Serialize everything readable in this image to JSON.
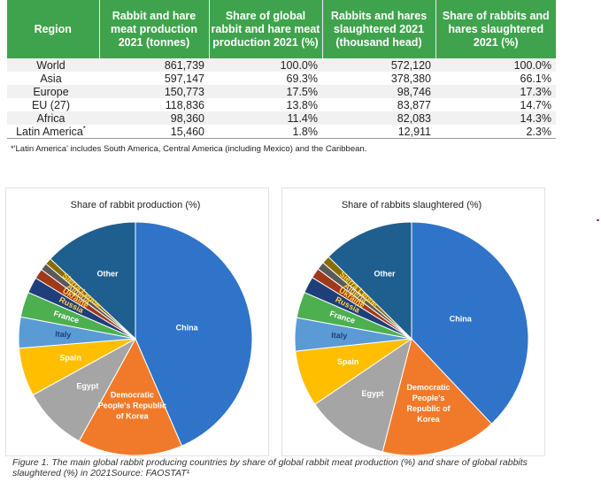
{
  "table": {
    "headers": [
      "Region",
      "Rabbit and hare meat production 2021 (tonnes)",
      "Share of global rabbit and hare meat production 2021 (%)",
      "Rabbits and hares slaughtered 2021 (thousand head)",
      "Share of rabbits and hares slaughtered 2021 (%)"
    ],
    "rows": [
      {
        "region": "World",
        "production": "861,739",
        "prod_share": "100.0%",
        "slaughtered": "572,120",
        "slaughter_share": "100.0%"
      },
      {
        "region": "Asia",
        "production": "597,147",
        "prod_share": "69.3%",
        "slaughtered": "378,380",
        "slaughter_share": "66.1%"
      },
      {
        "region": "Europe",
        "production": "150,773",
        "prod_share": "17.5%",
        "slaughtered": "98,746",
        "slaughter_share": "17.3%"
      },
      {
        "region": "EU (27)",
        "production": "118,836",
        "prod_share": "13.8%",
        "slaughtered": "83,877",
        "slaughter_share": "14.7%"
      },
      {
        "region": "Africa",
        "production": "98,360",
        "prod_share": "11.4%",
        "slaughtered": "82,083",
        "slaughter_share": "14.3%"
      },
      {
        "region": "Latin America",
        "footnote_mark": "*",
        "production": "15,460",
        "prod_share": "1.8%",
        "slaughtered": "12,911",
        "slaughter_share": "2.3%"
      }
    ],
    "footnote": "*'Latin America' includes South America, Central America (including Mexico) and the Caribbean."
  },
  "chart_data": [
    {
      "type": "pie",
      "title": "Share of rabbit production (%)",
      "categories": [
        "China",
        "Democratic People's Republic of Korea",
        "Egypt",
        "Spain",
        "Italy",
        "France",
        "Russia",
        "Ukraine",
        "Algeria",
        "Sierra Leone",
        "Other"
      ],
      "values": [
        43.5,
        14.5,
        9.0,
        6.7,
        4.3,
        3.5,
        2.2,
        1.4,
        1.0,
        0.9,
        13.0
      ],
      "colors": [
        "#2f74c8",
        "#f07a2a",
        "#a5a5a5",
        "#ffbe00",
        "#5b9bd5",
        "#4caf50",
        "#1f3f7a",
        "#9e3a1a",
        "#5a5a5a",
        "#8a6d00",
        "#1f5f8f"
      ]
    },
    {
      "type": "pie",
      "title": "Share of rabbits slaughtered (%)",
      "categories": [
        "China",
        "Democratic People's Republic of Korea",
        "Egypt",
        "Spain",
        "Italy",
        "France",
        "Russia",
        "Ukraine",
        "Algeria",
        "Sierra Leone",
        "Other"
      ],
      "values": [
        38.0,
        16.0,
        11.5,
        7.8,
        4.6,
        3.6,
        2.3,
        1.4,
        1.1,
        1.1,
        12.6
      ],
      "colors": [
        "#2f74c8",
        "#f07a2a",
        "#a5a5a5",
        "#ffbe00",
        "#5b9bd5",
        "#4caf50",
        "#1f3f7a",
        "#9e3a1a",
        "#5a5a5a",
        "#8a6d00",
        "#1f5f8f"
      ]
    }
  ],
  "caption": "Figure 1. The main global rabbit producing countries by share of global rabbit meat production (%) and share of global rabbits slaughtered (%) in 2021Source: FAOSTAT¹"
}
